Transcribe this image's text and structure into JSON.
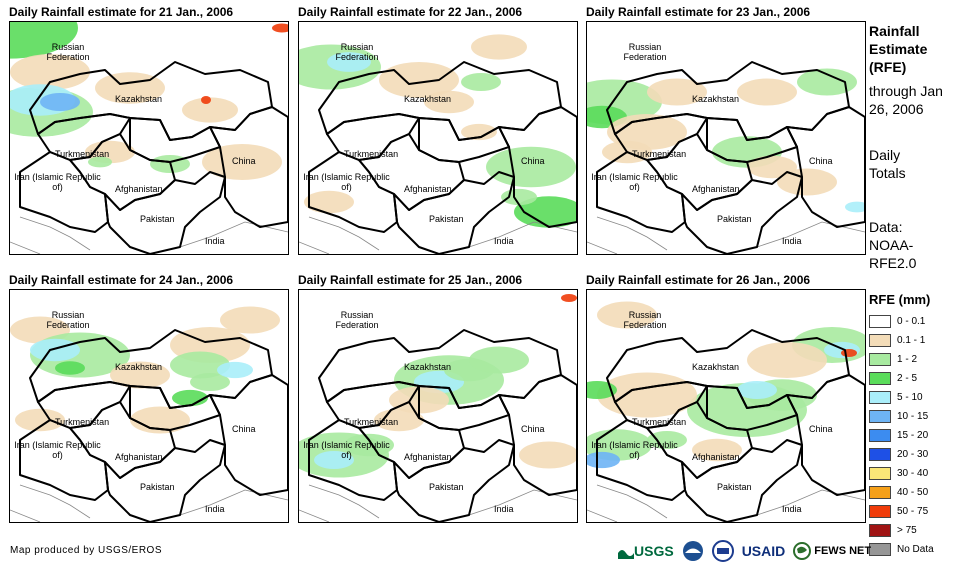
{
  "panels": [
    {
      "title": "Daily Rainfall estimate for 21 Jan., 2006"
    },
    {
      "title": "Daily Rainfall estimate for 22 Jan., 2006"
    },
    {
      "title": "Daily Rainfall estimate for 23 Jan., 2006"
    },
    {
      "title": "Daily Rainfall estimate for 24 Jan., 2006"
    },
    {
      "title": "Daily Rainfall estimate for 25 Jan., 2006"
    },
    {
      "title": "Daily Rainfall estimate for 26 Jan., 2006"
    }
  ],
  "map_labels": {
    "russia": "Russian Federation",
    "kazakhstan": "Kazakhstan",
    "turkmenistan": "Turkmenistan",
    "iran": "Iran (Islamic Republic of)",
    "afghanistan": "Afghanistan",
    "pakistan": "Pakistan",
    "india": "India",
    "china": "China"
  },
  "sidebar": {
    "heading": "Rainfall Estimate (RFE)",
    "through": "through Jan 26, 2006",
    "daily": "Daily Totals",
    "data_source": "Data: NOAA-RFE2.0"
  },
  "legend": {
    "title": "RFE (mm)",
    "items": [
      {
        "label": "0 - 0.1",
        "color": "#ffffff"
      },
      {
        "label": "0.1 - 1",
        "color": "#f3dcb8"
      },
      {
        "label": "1 - 2",
        "color": "#a8eaa0"
      },
      {
        "label": "2 - 5",
        "color": "#5adc5a"
      },
      {
        "label": "5 - 10",
        "color": "#aaeefa"
      },
      {
        "label": "10 - 15",
        "color": "#6eb4f5"
      },
      {
        "label": "15 - 20",
        "color": "#3c8cf0"
      },
      {
        "label": "20 - 30",
        "color": "#1e50e6"
      },
      {
        "label": "30 - 40",
        "color": "#fae678"
      },
      {
        "label": "40 - 50",
        "color": "#f5a019"
      },
      {
        "label": "50 - 75",
        "color": "#f03c0a"
      },
      {
        "label": "> 75",
        "color": "#a01414"
      },
      {
        "label": "No Data",
        "color": "#969696"
      }
    ]
  },
  "footer": {
    "credit": "Map produced by USGS/EROS"
  },
  "logos": {
    "usgs": "USGS",
    "usaid": "USAID",
    "fewsnet": "FEWS NET"
  }
}
